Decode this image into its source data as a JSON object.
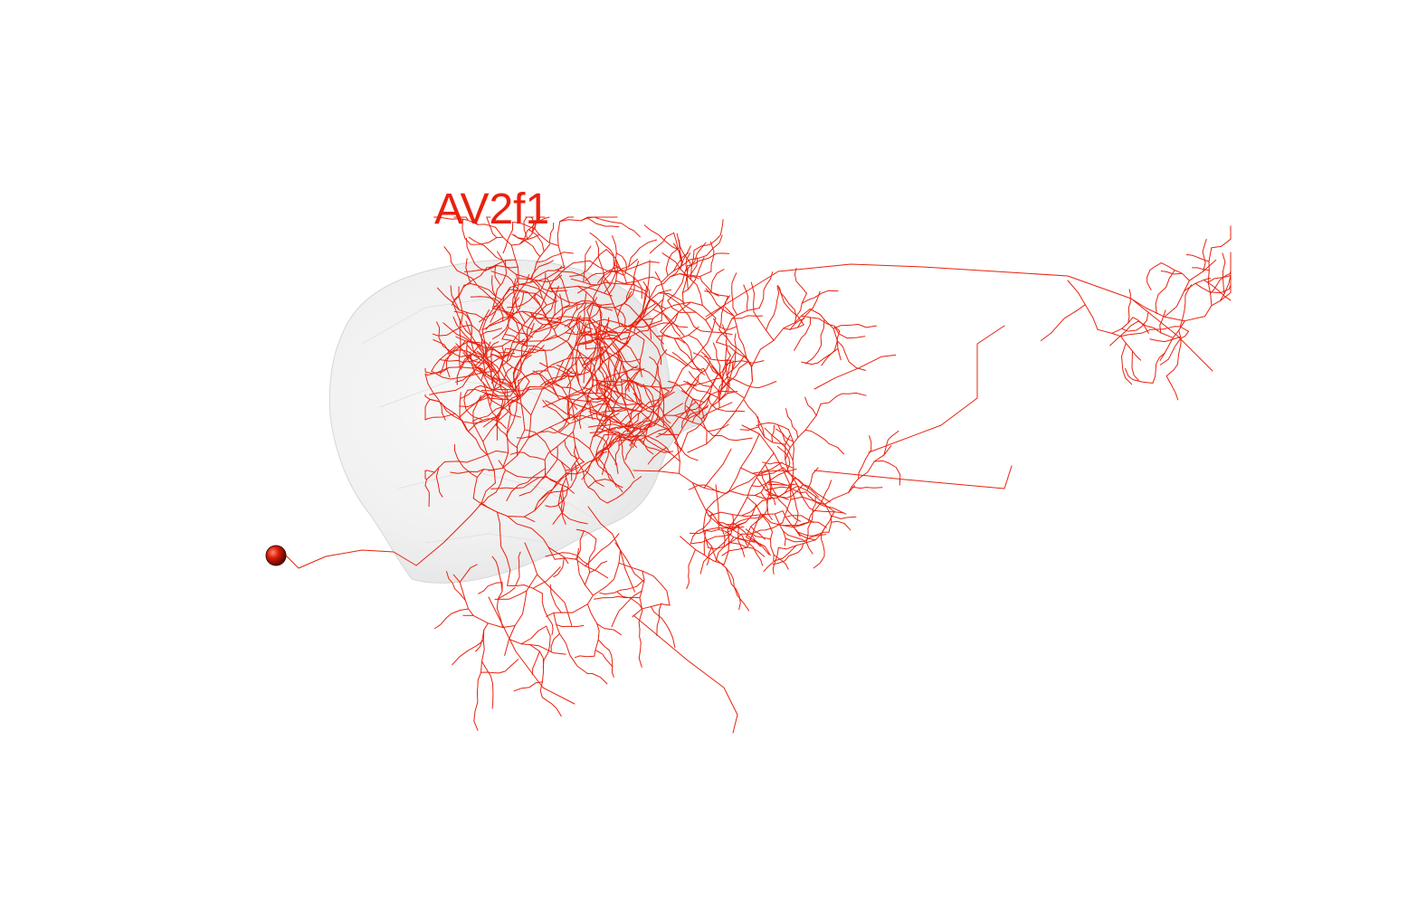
{
  "neuron": {
    "label": "AV2f1",
    "color": "#e8210e",
    "mesh_color": "#d8d8d8"
  }
}
